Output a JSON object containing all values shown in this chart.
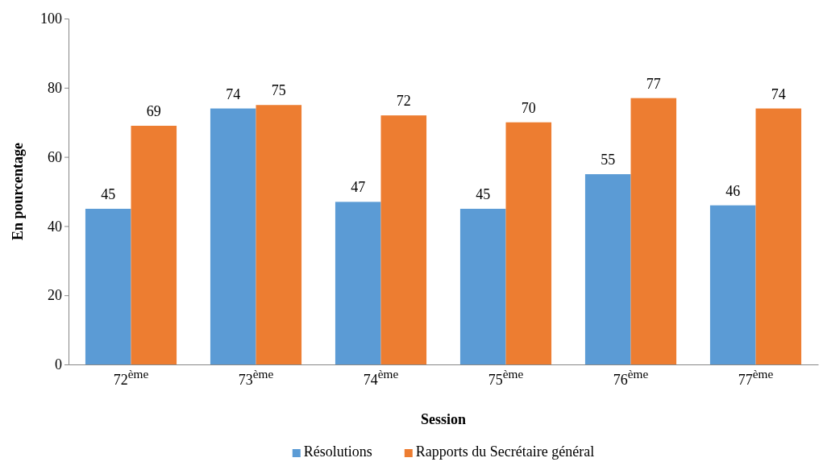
{
  "chart_data": {
    "type": "bar",
    "xlabel": "Session",
    "ylabel": "En pourcentage",
    "categories": [
      "72$^{ème}$",
      "73$^{ème}$",
      "74$^{ème}$",
      "75$^{ème}$",
      "76$^{ème}$",
      "77$^{ème}$"
    ],
    "series": [
      {
        "name": "Résolutions",
        "color": "#5b9bd5",
        "values": [
          45,
          74,
          47,
          45,
          55,
          46
        ]
      },
      {
        "name": "Rapports du Secrétaire général",
        "color": "#ed7d31",
        "values": [
          69,
          75,
          72,
          70,
          77,
          74
        ]
      }
    ],
    "ylim": [
      0,
      100
    ],
    "yticks": [
      0,
      20,
      40,
      60,
      80,
      100
    ],
    "grid": false,
    "legend": "bottom",
    "data_labels": true
  }
}
